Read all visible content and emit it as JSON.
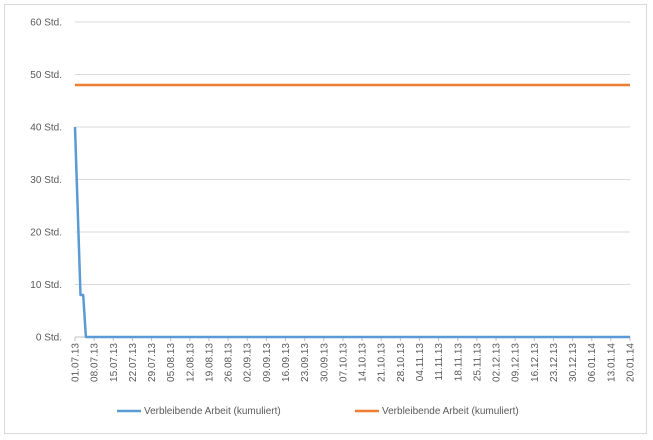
{
  "chart_data": {
    "type": "line",
    "title": "",
    "xlabel": "",
    "ylabel": "",
    "ylim": [
      0,
      60
    ],
    "y_ticks": [
      0,
      10,
      20,
      30,
      40,
      50,
      60
    ],
    "y_tick_labels": [
      "0 Std.",
      "10 Std.",
      "20 Std.",
      "30 Std.",
      "40 Std.",
      "50 Std.",
      "60 Std."
    ],
    "x_tick_labels": [
      "01.07.13",
      "08.07.13",
      "15.07.13",
      "22.07.13",
      "29.07.13",
      "05.08.13",
      "12.08.13",
      "19.08.13",
      "26.08.13",
      "02.09.13",
      "09.09.13",
      "16.09.13",
      "23.09.13",
      "30.09.13",
      "07.10.13",
      "14.10.13",
      "21.10.13",
      "28.10.13",
      "04.11.13",
      "11.11.13",
      "18.11.13",
      "25.11.13",
      "02.12.13",
      "09.12.13",
      "16.12.13",
      "23.12.13",
      "30.12.13",
      "06.01.14",
      "13.01.14",
      "20.01.14"
    ],
    "grid": "horizontal",
    "legend_position": "bottom",
    "series": [
      {
        "name": "Verbleibende Arbeit (kumuliert)",
        "color": "#5b9bd5",
        "x": [
          "01.07.13",
          "03.07.13",
          "04.07.13",
          "05.07.13",
          "20.01.14"
        ],
        "values": [
          40,
          8,
          8,
          0,
          0
        ]
      },
      {
        "name": "Verbleibende Arbeit (kumuliert)",
        "color": "#ed7d31",
        "x": [
          "01.07.13",
          "20.01.14"
        ],
        "values": [
          48,
          48
        ]
      }
    ]
  }
}
